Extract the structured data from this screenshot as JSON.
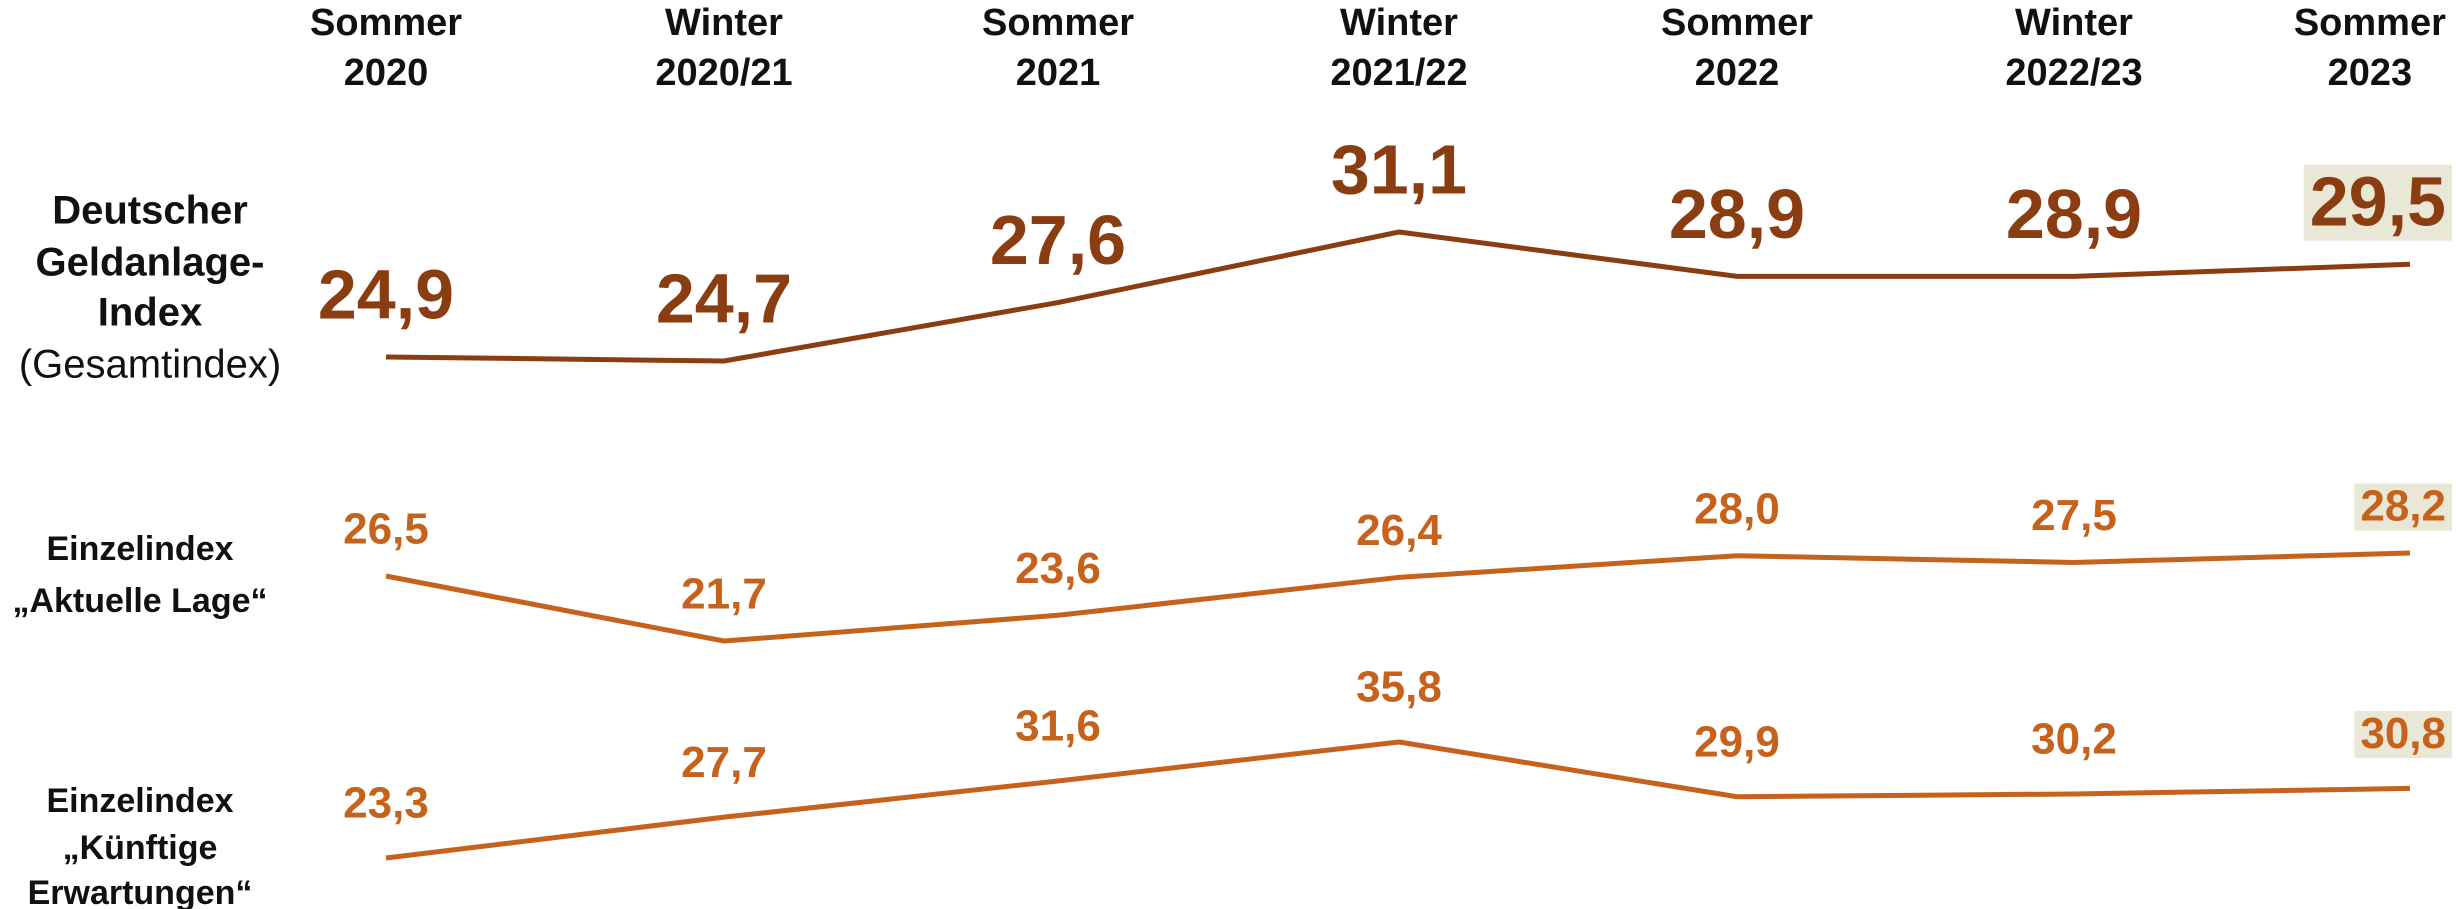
{
  "chart_data": {
    "type": "line",
    "categories": [
      "Sommer 2020",
      "Winter 2020/21",
      "Sommer 2021",
      "Winter 2021/22",
      "Sommer 2022",
      "Winter 2022/23",
      "Sommer 2023"
    ],
    "highlight": {
      "index": 6,
      "color": "#e9e7d5"
    },
    "series": [
      {
        "name": [
          "Deutscher",
          "Geldanlage-",
          "Index",
          "(Gesamtindex)"
        ],
        "color": "#8b3d12",
        "values": [
          24.9,
          24.7,
          27.6,
          31.1,
          28.9,
          28.9,
          29.5
        ],
        "value_labels": [
          "24,9",
          "24,7",
          "27,6",
          "31,1",
          "28,9",
          "28,9",
          "29,5"
        ]
      },
      {
        "name": [
          "Einzelindex",
          "„Aktuelle Lage“"
        ],
        "color": "#c6621c",
        "values": [
          26.5,
          21.7,
          23.6,
          26.4,
          28.0,
          27.5,
          28.2
        ],
        "value_labels": [
          "26,5",
          "21,7",
          "23,6",
          "26,4",
          "28,0",
          "27,5",
          "28,2"
        ]
      },
      {
        "name": [
          "Einzelindex",
          "„Künftige",
          "Erwartungen“"
        ],
        "color": "#c6621c",
        "values": [
          23.3,
          27.7,
          31.6,
          35.8,
          29.9,
          30.2,
          30.8
        ],
        "value_labels": [
          "23,3",
          "27,7",
          "31,6",
          "35,8",
          "29,9",
          "30,2",
          "30,8"
        ]
      }
    ]
  }
}
